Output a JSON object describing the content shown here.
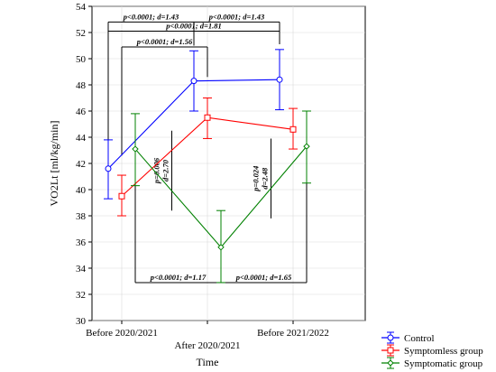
{
  "chart_data": {
    "type": "line",
    "title": "",
    "xlabel": "Time",
    "ylabel": "VO2Lt [ml/kg/min]",
    "ylim": [
      30,
      54
    ],
    "yticks": [
      30,
      32,
      34,
      36,
      38,
      40,
      42,
      44,
      46,
      48,
      50,
      52,
      54
    ],
    "categories": [
      "Before 2020/2021",
      "After 2020/2021",
      "Before 2021/2022"
    ],
    "grid": true,
    "legend_position": "bottom-right",
    "series": [
      {
        "name": "Control",
        "color": "#0000ff",
        "marker": "diamond-circle",
        "values": [
          41.6,
          48.3,
          48.4
        ],
        "ci_low": [
          39.3,
          46.0,
          46.1
        ],
        "ci_high": [
          43.8,
          50.6,
          50.7
        ]
      },
      {
        "name": "Symptomless group",
        "color": "#ff0000",
        "marker": "square",
        "values": [
          39.5,
          45.5,
          44.6
        ],
        "ci_low": [
          38.0,
          43.9,
          43.1
        ],
        "ci_high": [
          41.1,
          47.0,
          46.2
        ]
      },
      {
        "name": "Symptomatic group",
        "color": "#008000",
        "marker": "diamond",
        "values": [
          43.1,
          35.6,
          43.3
        ],
        "ci_low": [
          40.3,
          32.9,
          40.5
        ],
        "ci_high": [
          45.8,
          38.4,
          46.0
        ]
      }
    ],
    "annotations": [
      {
        "text": "p<0.0001; d=1.43",
        "orientation": "horizontal",
        "group": "Control",
        "between": [
          "Before 2020/2021",
          "After 2020/2021"
        ],
        "y": 52.8,
        "left_end": 43.3,
        "right_end": 51.0
      },
      {
        "text": "p<0.0001; d=1.43",
        "orientation": "horizontal",
        "group": "Control",
        "between": [
          "After 2020/2021",
          "Before 2021/2022"
        ],
        "y": 52.8,
        "left_end": 51.0,
        "right_end": 51.9
      },
      {
        "text": "p<0.0001; d=1.81",
        "orientation": "horizontal",
        "group": "Control",
        "between": [
          "Before 2020/2021",
          "Before 2021/2022"
        ],
        "y": 52.1,
        "left_end": 44.0,
        "right_end": 51.1
      },
      {
        "text": "p<0.0001; d=1.56",
        "orientation": "horizontal",
        "group": "Symptomless group",
        "between": [
          "Before 2020/2021",
          "After 2020/2021"
        ],
        "y": 50.9,
        "left_end": 42.6,
        "right_end": 48.6
      },
      {
        "text": "p=0.006",
        "text2": "d=2.70",
        "orientation": "vertical",
        "group": "Symptomless group",
        "between": [
          "Before 2020/2021",
          "After 2020/2021"
        ],
        "y_top": 44.5,
        "y_bottom": 38.4
      },
      {
        "text": "p=0.024",
        "text2": "d=2.48",
        "orientation": "vertical",
        "group": "Symptomatic group",
        "between": [
          "After 2020/2021",
          "Before 2021/2022"
        ],
        "y_top": 43.9,
        "y_bottom": 37.8
      },
      {
        "text": "p<0.0001; d=1.17",
        "orientation": "horizontal",
        "group": "Symptomatic group",
        "between": [
          "Before 2020/2021",
          "After 2020/2021"
        ],
        "y": 32.9,
        "left_end": 40.3,
        "right_end": 32.9
      },
      {
        "text": "p<0.0001; d=1.65",
        "orientation": "horizontal",
        "group": "Symptomatic group",
        "between": [
          "After 2020/2021",
          "Before 2021/2022"
        ],
        "y": 32.9,
        "left_end": 32.9,
        "right_end": 40.5
      }
    ]
  }
}
